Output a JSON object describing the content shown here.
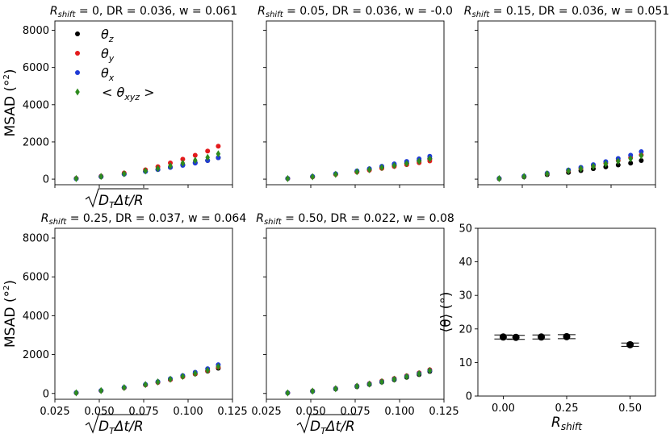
{
  "figure": {
    "xlabel": "√(D_TΔt)/R"
  },
  "colors": {
    "theta_z": "#000000",
    "theta_y": "#e41a1c",
    "theta_x": "#1f3bd6",
    "theta_xyz": "#2e8b1e"
  },
  "chart_data": [
    {
      "type": "scatter",
      "title": {
        "sub": "shift",
        "text": " = 0, DR = 0.036, w = 0.061"
      },
      "ylabel": "MSAD (°²)",
      "xlabel": "√(D_TΔt)/R",
      "xlim": [
        0.025,
        0.125
      ],
      "ylim": [
        -300,
        8500
      ],
      "yticks": [
        0,
        2000,
        4000,
        6000,
        8000
      ],
      "x": [
        0.037,
        0.051,
        0.064,
        0.076,
        0.083,
        0.09,
        0.097,
        0.104,
        0.111,
        0.117
      ],
      "series": [
        {
          "name": "θz",
          "key": "theta_z",
          "values": [
            30,
            130,
            270,
            420,
            520,
            630,
            760,
            880,
            1000,
            1150
          ]
        },
        {
          "name": "θy",
          "key": "theta_y",
          "values": [
            40,
            160,
            330,
            500,
            670,
            870,
            1070,
            1280,
            1510,
            1770
          ]
        },
        {
          "name": "θx",
          "key": "theta_x",
          "values": [
            25,
            140,
            270,
            410,
            520,
            630,
            740,
            860,
            1000,
            1150
          ]
        },
        {
          "name": "<θxyz>",
          "key": "theta_xyz",
          "values": [
            32,
            145,
            290,
            445,
            570,
            710,
            860,
            1010,
            1170,
            1360
          ]
        }
      ],
      "legend": {
        "position": "top-left",
        "items": [
          {
            "key": "theta_z",
            "label": "θ",
            "sub": "z",
            "marker": "circle"
          },
          {
            "key": "theta_y",
            "label": "θ",
            "sub": "y",
            "marker": "circle"
          },
          {
            "key": "theta_x",
            "label": "θ",
            "sub": "x",
            "marker": "circle"
          },
          {
            "key": "theta_xyz",
            "label": "< θ",
            "sub": "xyz",
            "suffix": " >",
            "marker": "diamond"
          }
        ]
      }
    },
    {
      "type": "scatter",
      "title": {
        "sub": "shift",
        "text": " = 0.05, DR = 0.036, w = -0.0"
      },
      "xlim": [
        0.025,
        0.125
      ],
      "ylim": [
        -300,
        8500
      ],
      "x": [
        0.037,
        0.051,
        0.064,
        0.076,
        0.083,
        0.09,
        0.097,
        0.104,
        0.111,
        0.117
      ],
      "series": [
        {
          "name": "θz",
          "key": "theta_z",
          "values": [
            30,
            130,
            270,
            410,
            520,
            620,
            740,
            860,
            980,
            1100
          ]
        },
        {
          "name": "θy",
          "key": "theta_y",
          "values": [
            30,
            120,
            250,
            380,
            480,
            580,
            680,
            780,
            880,
            980
          ]
        },
        {
          "name": "θx",
          "key": "theta_x",
          "values": [
            35,
            150,
            290,
            440,
            560,
            690,
            820,
            950,
            1090,
            1230
          ]
        },
        {
          "name": "<θxyz>",
          "key": "theta_xyz",
          "values": [
            30,
            130,
            260,
            400,
            510,
            620,
            730,
            840,
            960,
            1090
          ]
        }
      ]
    },
    {
      "type": "scatter",
      "title": {
        "sub": "shift",
        "text": " = 0.15, DR = 0.036, w = 0.051"
      },
      "xlim": [
        0.025,
        0.125
      ],
      "ylim": [
        -300,
        8500
      ],
      "x": [
        0.037,
        0.051,
        0.064,
        0.076,
        0.083,
        0.09,
        0.097,
        0.104,
        0.111,
        0.117
      ],
      "series": [
        {
          "name": "θz",
          "key": "theta_z",
          "values": [
            25,
            120,
            240,
            360,
            460,
            560,
            660,
            760,
            860,
            1000
          ]
        },
        {
          "name": "θy",
          "key": "theta_y",
          "values": [
            35,
            150,
            300,
            450,
            580,
            720,
            860,
            1000,
            1150,
            1300
          ]
        },
        {
          "name": "θx",
          "key": "theta_x",
          "values": [
            40,
            160,
            320,
            490,
            630,
            780,
            940,
            1110,
            1290,
            1480
          ]
        },
        {
          "name": "<θxyz>",
          "key": "theta_xyz",
          "values": [
            33,
            145,
            290,
            440,
            560,
            690,
            820,
            960,
            1100,
            1260
          ]
        }
      ]
    },
    {
      "type": "scatter",
      "title": {
        "sub": "shift",
        "text": " = 0.25, DR = 0.037, w = 0.064"
      },
      "ylabel": "MSAD (°²)",
      "xlabel": "√(D_TΔt)/R",
      "xlim": [
        0.025,
        0.125
      ],
      "ylim": [
        -300,
        8500
      ],
      "yticks": [
        0,
        2000,
        4000,
        6000,
        8000
      ],
      "xticks": [
        "0.025",
        "0.050",
        "0.075",
        "0.100",
        "0.125"
      ],
      "x": [
        0.037,
        0.051,
        0.064,
        0.076,
        0.083,
        0.09,
        0.097,
        0.104,
        0.111,
        0.117
      ],
      "series": [
        {
          "name": "θz",
          "key": "theta_z",
          "values": [
            30,
            140,
            290,
            440,
            570,
            710,
            860,
            1000,
            1150,
            1300
          ]
        },
        {
          "name": "θy",
          "key": "theta_y",
          "values": [
            30,
            140,
            290,
            440,
            570,
            710,
            860,
            1010,
            1170,
            1350
          ]
        },
        {
          "name": "θx",
          "key": "theta_x",
          "values": [
            35,
            150,
            310,
            470,
            610,
            760,
            920,
            1090,
            1270,
            1480
          ]
        },
        {
          "name": "<θxyz>",
          "key": "theta_xyz",
          "values": [
            32,
            145,
            300,
            455,
            590,
            730,
            880,
            1030,
            1190,
            1380
          ]
        }
      ]
    },
    {
      "type": "scatter",
      "title": {
        "sub": "shift",
        "text": " = 0.50, DR = 0.022, w = 0.08"
      },
      "xlabel": "√(D_TΔt)/R",
      "xlim": [
        0.025,
        0.125
      ],
      "ylim": [
        -300,
        8500
      ],
      "xticks": [
        "0.025",
        "0.050",
        "0.075",
        "0.100",
        "0.125"
      ],
      "x": [
        0.037,
        0.051,
        0.064,
        0.076,
        0.083,
        0.09,
        0.097,
        0.104,
        0.111,
        0.117
      ],
      "series": [
        {
          "name": "θz",
          "key": "theta_z",
          "values": [
            25,
            110,
            230,
            350,
            460,
            580,
            700,
            830,
            970,
            1130
          ]
        },
        {
          "name": "θy",
          "key": "theta_y",
          "values": [
            30,
            130,
            260,
            390,
            510,
            640,
            770,
            910,
            1060,
            1220
          ]
        },
        {
          "name": "θx",
          "key": "theta_x",
          "values": [
            30,
            120,
            250,
            380,
            490,
            610,
            740,
            880,
            1030,
            1180
          ]
        },
        {
          "name": "<θxyz>",
          "key": "theta_xyz",
          "values": [
            28,
            120,
            245,
            375,
            485,
            605,
            735,
            870,
            1020,
            1180
          ]
        }
      ]
    },
    {
      "type": "scatter",
      "title": null,
      "xlabel": "R",
      "xlabel_sub": "shift",
      "ylabel": "⟨θ⟩ (°)",
      "xlim": [
        -0.1,
        0.6
      ],
      "ylim": [
        0,
        50
      ],
      "xticks": [
        "0.00",
        "0.25",
        "0.50"
      ],
      "yticks": [
        0,
        10,
        20,
        30,
        40,
        50
      ],
      "x": [
        0.0,
        0.05,
        0.15,
        0.25,
        0.5
      ],
      "series": [
        {
          "name": "⟨θ⟩",
          "key": "theta_z",
          "values": [
            17.6,
            17.5,
            17.6,
            17.7,
            15.3
          ],
          "errors": [
            0.6,
            0.6,
            0.6,
            0.6,
            0.5
          ]
        }
      ]
    }
  ]
}
